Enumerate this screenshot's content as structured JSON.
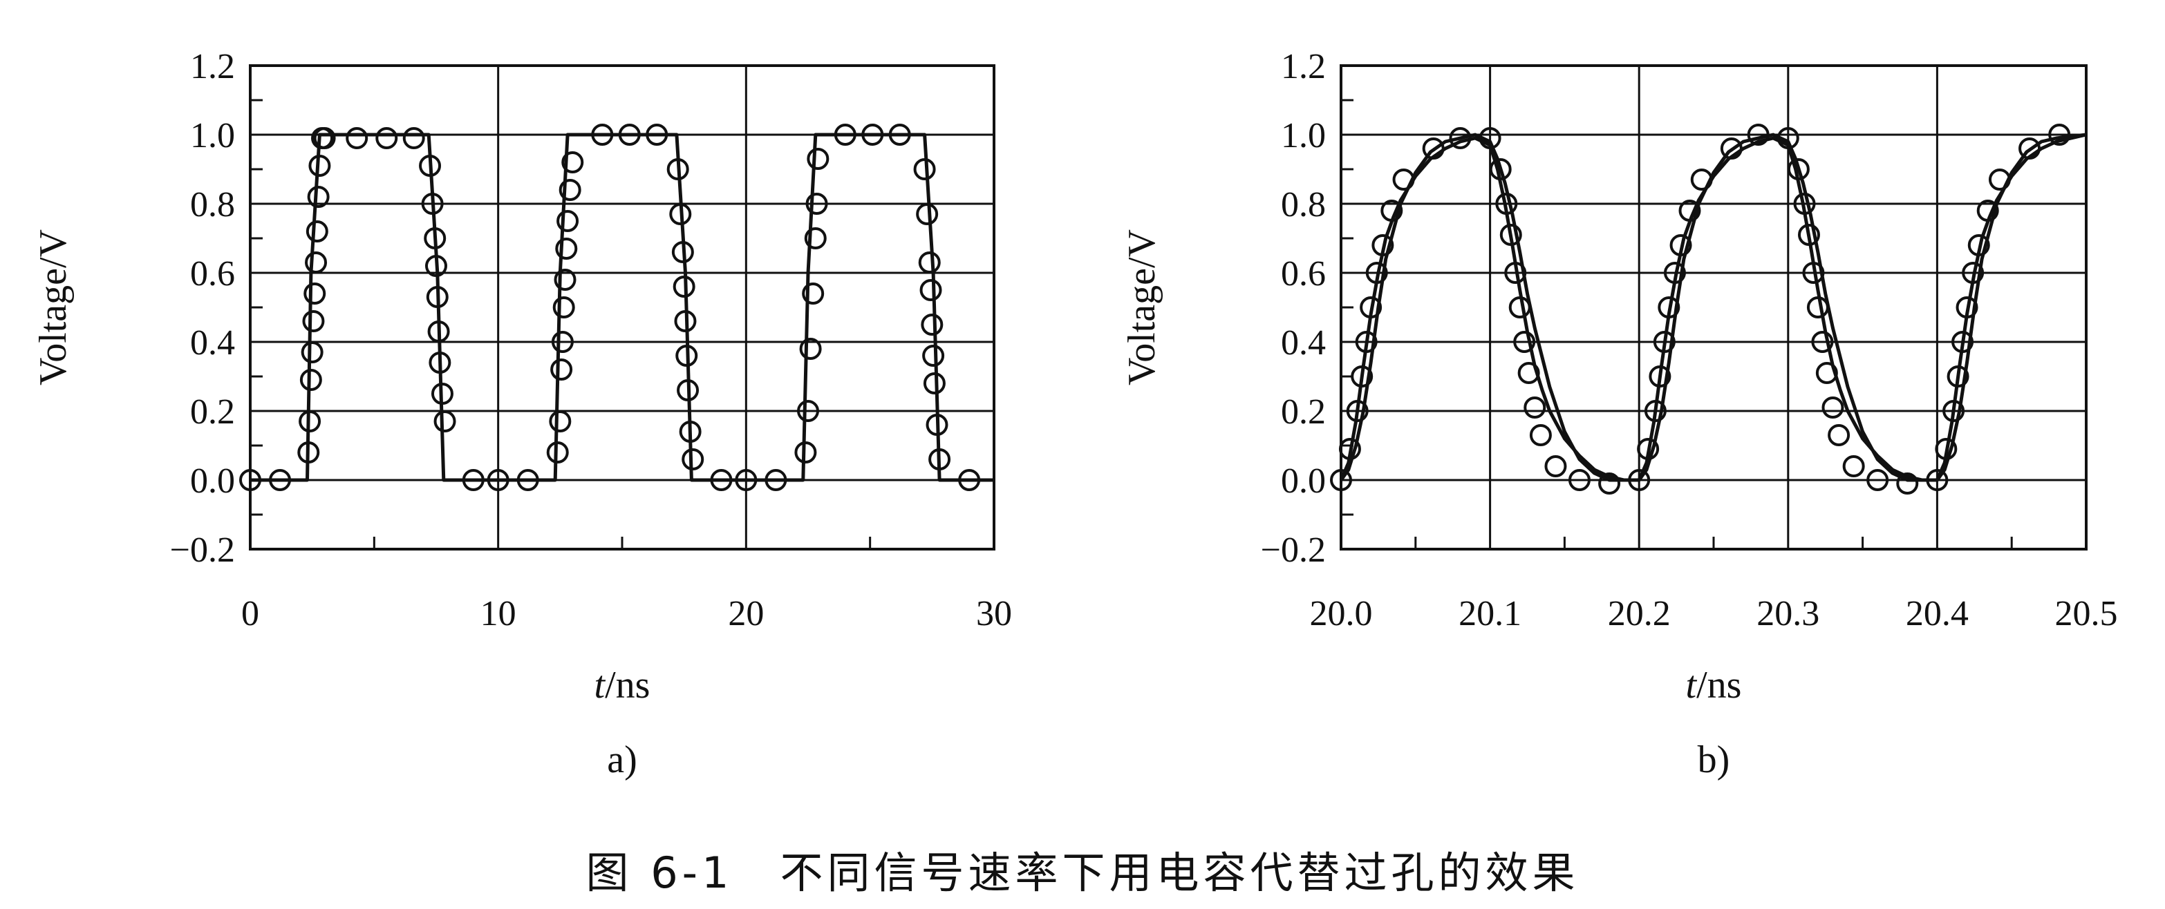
{
  "chart_data": [
    {
      "type": "line",
      "panel_label": "a)",
      "xlabel_italic": "t",
      "xlabel_unit": "/ns",
      "ylabel": "Voltage/V",
      "xlim": [
        0,
        30
      ],
      "ylim": [
        -0.2,
        1.2
      ],
      "x_ticks": [
        "0",
        "10",
        "20",
        "30"
      ],
      "y_ticks": [
        "−0.2",
        "0.0",
        "0.2",
        "0.4",
        "0.6",
        "0.8",
        "1.0",
        "1.2"
      ],
      "grid": true,
      "series": [
        {
          "style": "solid",
          "x": [
            0,
            2.3,
            2.45,
            2.8,
            7.2,
            7.55,
            7.8,
            9,
            11.5,
            12.3,
            12.5,
            12.8,
            17.2,
            17.55,
            17.8,
            19,
            21.5,
            22.3,
            22.5,
            22.8,
            27.2,
            27.55,
            27.8,
            29,
            30
          ],
          "y": [
            0,
            0,
            0.6,
            1.0,
            1.0,
            0.6,
            0.0,
            0,
            0,
            0,
            0.6,
            1.0,
            1.0,
            0.6,
            0.0,
            0,
            0,
            0,
            0.6,
            1.0,
            1.0,
            0.6,
            0.0,
            0,
            0
          ]
        },
        {
          "style": "circles",
          "x": [
            0,
            1.2,
            2.35,
            2.4,
            2.45,
            2.5,
            2.55,
            2.6,
            2.65,
            2.7,
            2.75,
            2.8,
            2.9,
            3.0,
            4.3,
            5.5,
            6.6,
            7.25,
            7.35,
            7.45,
            7.5,
            7.55,
            7.6,
            7.65,
            7.75,
            7.85,
            9.0,
            10.0,
            11.2,
            12.4,
            12.5,
            12.55,
            12.6,
            12.65,
            12.7,
            12.75,
            12.8,
            12.9,
            13.0,
            14.2,
            15.3,
            16.4,
            17.25,
            17.35,
            17.45,
            17.5,
            17.55,
            17.6,
            17.65,
            17.75,
            17.85,
            19.0,
            20.0,
            21.2,
            22.4,
            22.5,
            22.6,
            22.7,
            22.8,
            22.85,
            22.9,
            24.0,
            25.1,
            26.2,
            27.2,
            27.3,
            27.4,
            27.45,
            27.5,
            27.55,
            27.6,
            27.7,
            27.8,
            29.0
          ],
          "y": [
            0.0,
            0.0,
            0.08,
            0.17,
            0.29,
            0.37,
            0.46,
            0.54,
            0.63,
            0.72,
            0.82,
            0.91,
            0.99,
            0.99,
            0.99,
            0.99,
            0.99,
            0.91,
            0.8,
            0.7,
            0.62,
            0.53,
            0.43,
            0.34,
            0.25,
            0.17,
            0.0,
            0.0,
            0.0,
            0.08,
            0.17,
            0.32,
            0.4,
            0.5,
            0.58,
            0.67,
            0.75,
            0.84,
            0.92,
            1.0,
            1.0,
            1.0,
            0.9,
            0.77,
            0.66,
            0.56,
            0.46,
            0.36,
            0.26,
            0.14,
            0.06,
            0.0,
            0.0,
            0.0,
            0.08,
            0.2,
            0.38,
            0.54,
            0.7,
            0.8,
            0.93,
            1.0,
            1.0,
            1.0,
            0.9,
            0.77,
            0.63,
            0.55,
            0.45,
            0.36,
            0.28,
            0.16,
            0.06,
            0.0
          ]
        }
      ]
    },
    {
      "type": "line",
      "panel_label": "b)",
      "xlabel_italic": "t",
      "xlabel_unit": "/ns",
      "ylabel": "Voltage/V",
      "xlim": [
        20.0,
        20.5
      ],
      "ylim": [
        -0.2,
        1.2
      ],
      "x_ticks": [
        "20.0",
        "20.1",
        "20.2",
        "20.3",
        "20.4",
        "20.5"
      ],
      "y_ticks": [
        "−0.2",
        "0.0",
        "0.2",
        "0.4",
        "0.6",
        "0.8",
        "1.0",
        "1.2"
      ],
      "grid": true,
      "series": [
        {
          "style": "solid",
          "x": [
            20.0,
            20.005,
            20.01,
            20.015,
            20.02,
            20.025,
            20.03,
            20.04,
            20.05,
            20.06,
            20.07,
            20.08,
            20.09,
            20.1,
            20.105,
            20.11,
            20.115,
            20.12,
            20.125,
            20.13,
            20.14,
            20.15,
            20.16,
            20.17,
            20.18,
            20.19,
            20.2,
            20.205,
            20.21,
            20.215,
            20.22,
            20.225,
            20.23,
            20.24,
            20.25,
            20.26,
            20.27,
            20.28,
            20.29,
            20.3,
            20.305,
            20.31,
            20.315,
            20.32,
            20.325,
            20.33,
            20.34,
            20.35,
            20.36,
            20.37,
            20.38,
            20.39,
            20.4,
            20.405,
            20.41,
            20.415,
            20.42,
            20.425,
            20.43,
            20.44,
            20.45,
            20.46,
            20.47,
            20.48,
            20.5
          ],
          "y": [
            0.0,
            0.03,
            0.1,
            0.2,
            0.34,
            0.5,
            0.64,
            0.8,
            0.89,
            0.95,
            0.98,
            0.99,
            1.0,
            0.98,
            0.93,
            0.86,
            0.77,
            0.66,
            0.54,
            0.44,
            0.27,
            0.14,
            0.06,
            0.02,
            0.0,
            0.0,
            0.0,
            0.03,
            0.1,
            0.2,
            0.34,
            0.5,
            0.64,
            0.8,
            0.89,
            0.95,
            0.98,
            0.99,
            1.0,
            0.98,
            0.93,
            0.86,
            0.77,
            0.66,
            0.54,
            0.44,
            0.27,
            0.14,
            0.06,
            0.02,
            0.0,
            0.0,
            0.0,
            0.03,
            0.1,
            0.2,
            0.34,
            0.5,
            0.64,
            0.8,
            0.89,
            0.95,
            0.98,
            0.99,
            1.0
          ]
        },
        {
          "style": "solid",
          "x": [
            20.0,
            20.005,
            20.01,
            20.015,
            20.02,
            20.025,
            20.03,
            20.035,
            20.04,
            20.05,
            20.06,
            20.07,
            20.08,
            20.09,
            20.1,
            20.105,
            20.11,
            20.115,
            20.12,
            20.125,
            20.13,
            20.135,
            20.14,
            20.15,
            20.16,
            20.17,
            20.18,
            20.19,
            20.2,
            20.205,
            20.21,
            20.215,
            20.22,
            20.225,
            20.23,
            20.235,
            20.24,
            20.25,
            20.26,
            20.27,
            20.28,
            20.29,
            20.3,
            20.305,
            20.31,
            20.315,
            20.32,
            20.325,
            20.33,
            20.335,
            20.34,
            20.35,
            20.36,
            20.37,
            20.38,
            20.39,
            20.4,
            20.405,
            20.41,
            20.415,
            20.42,
            20.425,
            20.43,
            20.435,
            20.44,
            20.45,
            20.46,
            20.47,
            20.48,
            20.5
          ],
          "y": [
            0.0,
            0.05,
            0.17,
            0.33,
            0.48,
            0.6,
            0.7,
            0.76,
            0.81,
            0.88,
            0.93,
            0.96,
            0.98,
            0.99,
            0.97,
            0.9,
            0.8,
            0.68,
            0.55,
            0.43,
            0.33,
            0.26,
            0.2,
            0.12,
            0.07,
            0.03,
            0.01,
            0.0,
            0.0,
            0.05,
            0.17,
            0.33,
            0.48,
            0.6,
            0.7,
            0.76,
            0.81,
            0.88,
            0.93,
            0.96,
            0.98,
            0.99,
            0.97,
            0.9,
            0.8,
            0.68,
            0.55,
            0.43,
            0.33,
            0.26,
            0.2,
            0.12,
            0.07,
            0.03,
            0.01,
            0.0,
            0.0,
            0.05,
            0.17,
            0.33,
            0.48,
            0.6,
            0.7,
            0.76,
            0.81,
            0.88,
            0.93,
            0.96,
            0.98,
            1.0
          ]
        },
        {
          "style": "circles",
          "x": [
            20.0,
            20.006,
            20.011,
            20.014,
            20.017,
            20.02,
            20.024,
            20.028,
            20.034,
            20.042,
            20.062,
            20.08,
            20.1,
            20.107,
            20.111,
            20.114,
            20.117,
            20.12,
            20.123,
            20.126,
            20.13,
            20.134,
            20.144,
            20.16,
            20.18,
            20.2,
            20.206,
            20.211,
            20.214,
            20.217,
            20.22,
            20.224,
            20.228,
            20.234,
            20.242,
            20.262,
            20.28,
            20.3,
            20.307,
            20.311,
            20.314,
            20.317,
            20.32,
            20.323,
            20.326,
            20.33,
            20.334,
            20.344,
            20.36,
            20.38,
            20.4,
            20.406,
            20.411,
            20.414,
            20.417,
            20.42,
            20.424,
            20.428,
            20.434,
            20.442,
            20.462,
            20.482
          ],
          "y": [
            0.0,
            0.09,
            0.2,
            0.3,
            0.4,
            0.5,
            0.6,
            0.68,
            0.78,
            0.87,
            0.96,
            0.99,
            0.99,
            0.9,
            0.8,
            0.71,
            0.6,
            0.5,
            0.4,
            0.31,
            0.21,
            0.13,
            0.04,
            0.0,
            -0.01,
            0.0,
            0.09,
            0.2,
            0.3,
            0.4,
            0.5,
            0.6,
            0.68,
            0.78,
            0.87,
            0.96,
            1.0,
            0.99,
            0.9,
            0.8,
            0.71,
            0.6,
            0.5,
            0.4,
            0.31,
            0.21,
            0.13,
            0.04,
            0.0,
            -0.01,
            0.0,
            0.09,
            0.2,
            0.3,
            0.4,
            0.5,
            0.6,
            0.68,
            0.78,
            0.87,
            0.96,
            1.0
          ]
        }
      ]
    }
  ],
  "caption": "图 6-1　不同信号速率下用电容代替过孔的效果"
}
